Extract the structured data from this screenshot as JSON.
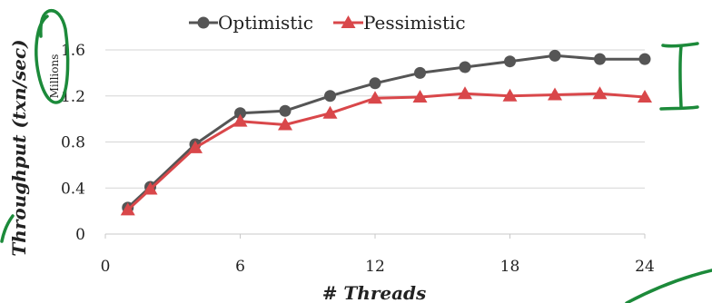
{
  "colors": {
    "optimistic": "#555555",
    "pessimistic": "#d9474a",
    "annotation": "#1c8a3a"
  },
  "chart_data": {
    "type": "line",
    "title": "",
    "xlabel": "# Threads",
    "ylabel": "Throughput (txn/sec)",
    "y_units_label": "Millions",
    "xlim": [
      0,
      24
    ],
    "ylim": [
      0,
      1.6
    ],
    "x_ticks": [
      "0",
      "6",
      "12",
      "18",
      "24"
    ],
    "y_ticks": [
      "0",
      "0.4",
      "0.8",
      "1.2",
      "1.6"
    ],
    "x_tick_values": [
      0,
      6,
      12,
      18,
      24
    ],
    "y_tick_values": [
      0,
      0.4,
      0.8,
      1.2,
      1.6
    ],
    "grid": "horizontal",
    "legend_position": "top",
    "x": [
      1,
      2,
      4,
      6,
      8,
      10,
      12,
      14,
      16,
      18,
      20,
      22,
      24
    ],
    "series": [
      {
        "name": "Optimistic",
        "marker": "circle",
        "values": [
          0.23,
          0.41,
          0.78,
          1.05,
          1.07,
          1.2,
          1.31,
          1.4,
          1.45,
          1.5,
          1.55,
          1.52,
          1.52
        ]
      },
      {
        "name": "Pessimistic",
        "marker": "triangle",
        "values": [
          0.21,
          0.39,
          0.75,
          0.98,
          0.95,
          1.05,
          1.18,
          1.19,
          1.22,
          1.2,
          1.21,
          1.22,
          1.19
        ]
      }
    ]
  }
}
